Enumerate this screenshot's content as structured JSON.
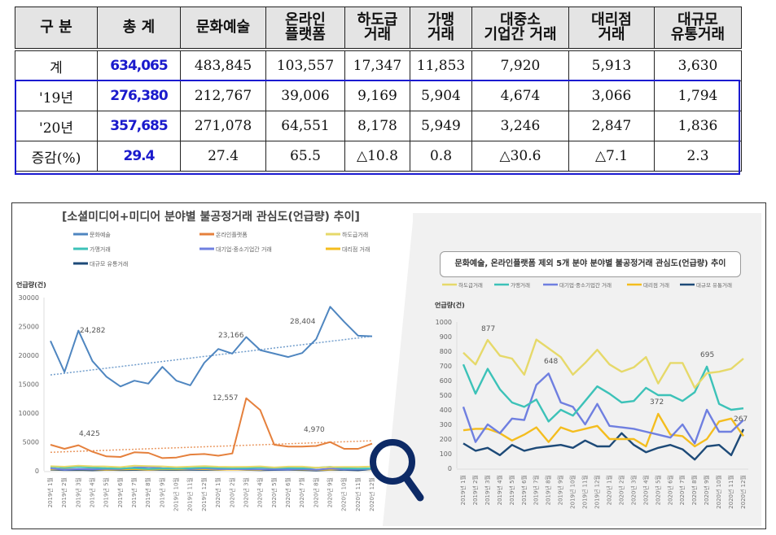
{
  "table": {
    "headers": [
      "구 분",
      "총 계",
      "문화예술",
      "온라인\n플랫폼",
      "하도급\n거래",
      "가맹\n거래",
      "대중소\n기업간 거래",
      "대리점\n거래",
      "대규모\n유통거래"
    ],
    "rows": [
      {
        "label": "계",
        "total": "634,065",
        "values": [
          "483,845",
          "103,557",
          "17,347",
          "11,853",
          "7,920",
          "5,913",
          "3,630"
        ]
      },
      {
        "label": "'19년",
        "total": "276,380",
        "values": [
          "212,767",
          "39,006",
          "9,169",
          "5,904",
          "4,674",
          "3,066",
          "1,794"
        ]
      },
      {
        "label": "'20년",
        "total": "357,685",
        "values": [
          "271,078",
          "64,551",
          "8,178",
          "5,949",
          "3,246",
          "2,847",
          "1,836"
        ]
      },
      {
        "label": "증감(%)",
        "total": "29.4",
        "values": [
          "27.4",
          "65.5",
          "△10.8",
          "0.8",
          "△30.6",
          "△7.1",
          "2.3"
        ]
      }
    ]
  },
  "colors": {
    "culture": "#4f86c0",
    "online": "#e5803c",
    "subcontract": "#e6d96a",
    "franchise": "#3cc2b8",
    "large_small": "#6f7fe0",
    "agency": "#f4bd1e",
    "large_retail": "#1d4a78",
    "highlight_blue": "#1a1acc",
    "magnifier": "#0d2a66"
  },
  "icons": {
    "magnifier": "magnifier-icon"
  },
  "chart_data": [
    {
      "type": "line",
      "title": "[소셜미디어+미디어 분야별 불공정거래 관심도(언급량) 추이]",
      "ylabel": "언급량(건)",
      "xlabel": "",
      "ylim": [
        0,
        30000
      ],
      "yticks": [
        "30000",
        "25000",
        "20000",
        "15000",
        "10000",
        "5000",
        "0"
      ],
      "legend": "top",
      "x": [
        "2019년 1월",
        "2019년 2월",
        "2019년 3월",
        "2019년 4월",
        "2019년 5월",
        "2019년 6월",
        "2019년 7월",
        "2019년 8월",
        "2019년 9월",
        "2019년 10월",
        "2019년 11월",
        "2019년 12월",
        "2020년 1월",
        "2020년 2월",
        "2020년 3월",
        "2020년 4월",
        "2020년 5월",
        "2020년 6월",
        "2020년 7월",
        "2020년 8월",
        "2020년 9월",
        "2020년 10월",
        "2020년 11월",
        "2020년 12월"
      ],
      "series": [
        {
          "name": "문화예술",
          "color_key": "culture",
          "values": [
            22500,
            17100,
            24282,
            19000,
            16300,
            14600,
            15600,
            15100,
            18000,
            15600,
            14800,
            18700,
            21100,
            20300,
            23166,
            20900,
            20300,
            19700,
            20400,
            22800,
            28404,
            25800,
            23400,
            23300
          ],
          "trend": [
            16600,
            23300
          ]
        },
        {
          "name": "온라인플랫폼",
          "color_key": "online",
          "values": [
            4500,
            3800,
            4425,
            3300,
            2500,
            2400,
            3200,
            3100,
            2200,
            2300,
            2800,
            2900,
            2600,
            3000,
            12557,
            10500,
            4500,
            4200,
            4200,
            4300,
            4970,
            3800,
            3800,
            4700
          ],
          "trend": [
            3200,
            5200
          ]
        },
        {
          "name": "하도급거래",
          "color_key": "subcontract",
          "values": [
            790,
            710,
            877,
            770,
            750,
            640,
            880,
            820,
            760,
            640,
            720,
            810,
            710,
            660,
            690,
            760,
            580,
            720,
            720,
            550,
            650,
            660,
            680,
            750
          ]
        },
        {
          "name": "가맹거래",
          "color_key": "franchise",
          "values": [
            710,
            510,
            680,
            540,
            450,
            420,
            470,
            320,
            400,
            360,
            460,
            560,
            510,
            450,
            460,
            550,
            500,
            500,
            460,
            520,
            695,
            440,
            400,
            410
          ]
        },
        {
          "name": "대기업·중소기업간 거래",
          "color_key": "large_small",
          "values": [
            420,
            180,
            300,
            240,
            340,
            330,
            570,
            648,
            450,
            420,
            300,
            440,
            290,
            280,
            270,
            250,
            230,
            210,
            300,
            170,
            400,
            250,
            250,
            330
          ]
        },
        {
          "name": "대리점 거래",
          "color_key": "agency",
          "values": [
            260,
            270,
            270,
            240,
            190,
            230,
            280,
            180,
            280,
            250,
            270,
            290,
            200,
            200,
            200,
            150,
            372,
            230,
            220,
            150,
            200,
            320,
            340,
            220
          ]
        },
        {
          "name": "대규모 유통거래",
          "color_key": "large_retail",
          "values": [
            170,
            120,
            140,
            90,
            160,
            120,
            140,
            150,
            160,
            140,
            190,
            150,
            150,
            240,
            160,
            110,
            140,
            160,
            130,
            60,
            150,
            160,
            90,
            267
          ]
        }
      ],
      "annotations": [
        "24,282",
        "23,166",
        "28,404",
        "12,557",
        "4,425",
        "4,970"
      ]
    },
    {
      "type": "line",
      "title": "문화예술, 온라인플랫폼 제외 5개 분야 분야별 불공정거래 관심도(언급량) 추이",
      "ylabel": "언급량(건)",
      "xlabel": "",
      "ylim": [
        0,
        1000
      ],
      "yticks": [
        "1000",
        "900",
        "800",
        "700",
        "600",
        "500",
        "400",
        "300",
        "200",
        "100",
        "0"
      ],
      "legend": "top",
      "x": [
        "2019년 1월",
        "2019년 2월",
        "2019년 3월",
        "2019년 4월",
        "2019년 5월",
        "2019년 6월",
        "2019년 7월",
        "2019년 8월",
        "2019년 9월",
        "2019년 10월",
        "2019년 11월",
        "2019년 12월",
        "2020년 1월",
        "2020년 2월",
        "2020년 3월",
        "2020년 4월",
        "2020년 5월",
        "2020년 6월",
        "2020년 7월",
        "2020년 8월",
        "2020년 9월",
        "2020년 10월",
        "2020년 11월",
        "2020년 12월"
      ],
      "series": [
        {
          "name": "하도급거래",
          "color_key": "subcontract",
          "values": [
            790,
            710,
            877,
            770,
            750,
            640,
            880,
            820,
            760,
            640,
            720,
            810,
            710,
            660,
            690,
            760,
            580,
            720,
            720,
            550,
            650,
            660,
            680,
            750
          ]
        },
        {
          "name": "가맹거래",
          "color_key": "franchise",
          "values": [
            710,
            510,
            680,
            540,
            450,
            420,
            470,
            320,
            400,
            360,
            460,
            560,
            510,
            450,
            460,
            550,
            500,
            500,
            460,
            520,
            695,
            440,
            400,
            410
          ]
        },
        {
          "name": "대기업·중소기업간 거래",
          "color_key": "large_small",
          "values": [
            420,
            180,
            300,
            240,
            340,
            330,
            570,
            648,
            450,
            420,
            300,
            440,
            290,
            280,
            270,
            250,
            230,
            210,
            300,
            170,
            400,
            250,
            250,
            330
          ]
        },
        {
          "name": "대리점 거래",
          "color_key": "agency",
          "values": [
            260,
            270,
            270,
            240,
            190,
            230,
            280,
            180,
            280,
            250,
            270,
            290,
            200,
            200,
            200,
            150,
            372,
            230,
            220,
            150,
            200,
            320,
            340,
            220
          ]
        },
        {
          "name": "대규모 유통거래",
          "color_key": "large_retail",
          "values": [
            170,
            120,
            140,
            90,
            160,
            120,
            140,
            150,
            160,
            140,
            190,
            150,
            150,
            240,
            160,
            110,
            140,
            160,
            130,
            60,
            150,
            160,
            90,
            267
          ]
        }
      ],
      "annotations": [
        "877",
        "648",
        "372",
        "695",
        "267"
      ]
    }
  ]
}
